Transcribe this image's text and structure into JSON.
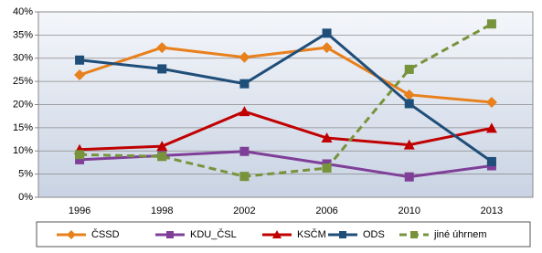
{
  "chart_data": {
    "type": "line",
    "categories": [
      "1996",
      "1998",
      "2002",
      "2006",
      "2010",
      "2013"
    ],
    "ylim": [
      0,
      40
    ],
    "yticks": [
      {
        "value": 0,
        "label": "0%"
      },
      {
        "value": 5,
        "label": "5%"
      },
      {
        "value": 10,
        "label": "10%"
      },
      {
        "value": 15,
        "label": "15%"
      },
      {
        "value": 20,
        "label": "20%"
      },
      {
        "value": 25,
        "label": "25%"
      },
      {
        "value": 30,
        "label": "30%"
      },
      {
        "value": 35,
        "label": "35%"
      },
      {
        "value": 40,
        "label": "40%"
      }
    ],
    "grid": true,
    "legend": "bottom",
    "series": [
      {
        "name": "ČSSD",
        "color": "#e8801c",
        "marker": "diamond",
        "dashed": false,
        "values": [
          26.4,
          32.3,
          30.2,
          32.3,
          22.1,
          20.5
        ]
      },
      {
        "name": "KDU_ČSL",
        "color": "#7f3f98",
        "marker": "square",
        "dashed": false,
        "values": [
          8.1,
          9.0,
          9.9,
          7.2,
          4.4,
          6.8
        ]
      },
      {
        "name": "KSČM",
        "color": "#c00000",
        "marker": "triangle",
        "dashed": false,
        "values": [
          10.3,
          11.0,
          18.5,
          12.8,
          11.3,
          14.9
        ]
      },
      {
        "name": "ODS",
        "color": "#1f4e79",
        "marker": "square",
        "dashed": false,
        "values": [
          29.6,
          27.7,
          24.5,
          35.4,
          20.2,
          7.7
        ]
      },
      {
        "name": "jiné úhrnem",
        "color": "#77933c",
        "marker": "square",
        "dashed": true,
        "values": [
          9.2,
          8.8,
          4.5,
          6.3,
          27.6,
          37.4
        ]
      }
    ]
  }
}
